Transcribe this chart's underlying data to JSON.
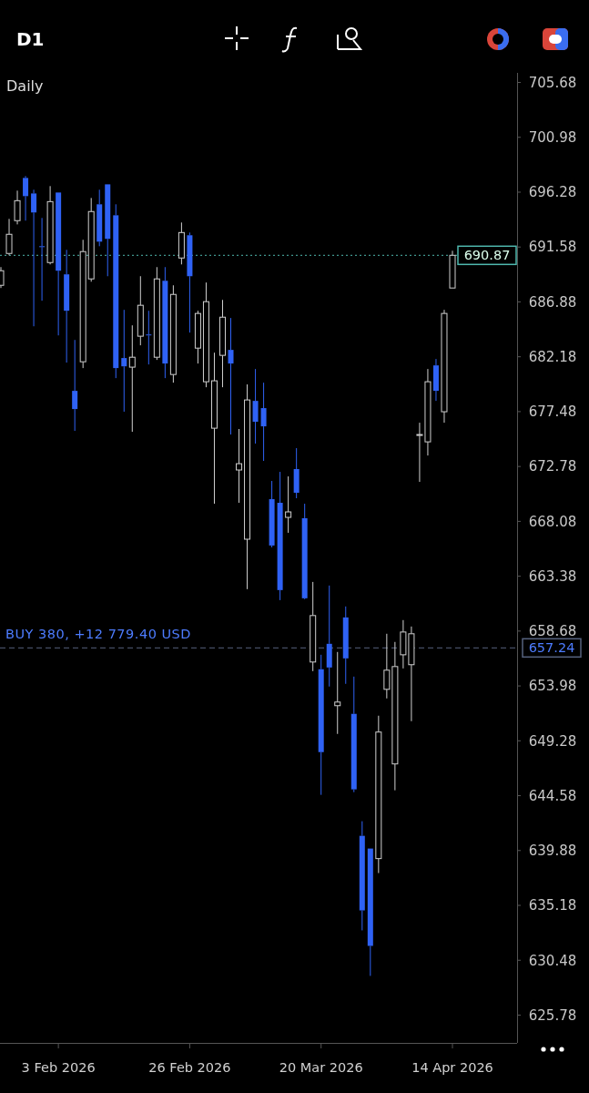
{
  "chart_data": {
    "type": "candlestick",
    "title": "Daily",
    "categories": [
      null,
      null,
      null,
      null,
      null,
      null,
      null,
      "3 Feb 2026",
      null,
      null,
      null,
      null,
      null,
      null,
      null,
      null,
      null,
      null,
      null,
      null,
      null,
      null,
      null,
      "26 Feb 2026",
      null,
      null,
      null,
      null,
      null,
      null,
      null,
      null,
      null,
      null,
      null,
      null,
      null,
      null,
      null,
      "20 Mar 2026",
      null,
      null,
      null,
      null,
      null,
      null,
      null,
      null,
      null,
      null,
      null,
      null,
      null,
      null,
      null,
      "14 Apr 2026"
    ],
    "ohlc": [
      [
        688.3,
        689.86,
        688.07,
        689.55
      ],
      [
        691.03,
        693.99,
        690.87,
        692.67
      ],
      [
        693.84,
        696.41,
        693.52,
        695.55
      ],
      [
        697.5,
        697.66,
        693.84,
        695.94
      ],
      [
        696.17,
        696.49,
        684.79,
        694.54
      ],
      [
        691.65,
        694.07,
        686.98,
        691.58
      ],
      [
        690.25,
        696.8,
        690.09,
        695.47
      ],
      [
        696.25,
        696.25,
        684.01,
        689.55
      ],
      [
        689.24,
        691.34,
        681.68,
        686.12
      ],
      [
        679.26,
        683.62,
        675.83,
        677.7
      ],
      [
        681.75,
        692.2,
        681.21,
        691.19
      ],
      [
        688.85,
        695.78,
        688.61,
        694.62
      ],
      [
        695.24,
        696.49,
        691.65,
        692.04
      ],
      [
        696.95,
        696.95,
        689.08,
        692.28
      ],
      [
        694.3,
        695.24,
        680.35,
        681.21
      ],
      [
        682.07,
        686.2,
        677.47,
        681.36
      ],
      [
        681.29,
        684.87,
        675.75,
        682.14
      ],
      [
        683.94,
        689.08,
        683.16,
        686.59
      ],
      [
        684.09,
        686.12,
        681.52,
        684.01
      ],
      [
        682.14,
        689.86,
        681.91,
        688.85
      ],
      [
        688.69,
        689.86,
        680.35,
        681.6
      ],
      [
        680.66,
        688.3,
        679.96,
        687.52
      ],
      [
        690.64,
        693.68,
        690.09,
        692.82
      ],
      [
        692.59,
        692.82,
        684.25,
        689.08
      ],
      [
        682.92,
        686.12,
        681.6,
        685.89
      ],
      [
        680.04,
        688.54,
        679.57,
        686.9
      ],
      [
        676.06,
        682.53,
        669.59,
        680.12
      ],
      [
        682.3,
        687.05,
        679.57,
        685.57
      ],
      [
        682.77,
        685.5,
        675.52,
        681.6
      ],
      [
        672.48,
        675.99,
        669.67,
        673.02
      ],
      [
        666.55,
        679.81,
        662.27,
        678.48
      ],
      [
        678.4,
        681.13,
        674.74,
        676.61
      ],
      [
        677.78,
        679.96,
        673.26,
        676.22
      ],
      [
        669.98,
        671.54,
        665.85,
        666.01
      ],
      [
        669.67,
        672.32,
        661.33,
        662.19
      ],
      [
        668.42,
        671.93,
        667.1,
        668.89
      ],
      [
        672.56,
        674.35,
        670.06,
        670.53
      ],
      [
        668.35,
        669.59,
        661.41,
        661.49
      ],
      [
        656.03,
        662.89,
        655.25,
        660.01
      ],
      [
        655.41,
        656.65,
        644.65,
        648.31
      ],
      [
        657.59,
        662.58,
        653.93,
        655.56
      ],
      [
        652.29,
        656.89,
        649.87,
        652.6
      ],
      [
        659.85,
        660.79,
        654.16,
        656.34
      ],
      [
        651.59,
        654.78,
        644.88,
        645.12
      ],
      [
        641.14,
        642.39,
        633.04,
        634.75
      ],
      [
        640.05,
        640.05,
        629.14,
        631.71
      ],
      [
        639.19,
        651.43,
        637.95,
        650.03
      ],
      [
        653.69,
        658.45,
        652.91,
        655.33
      ],
      [
        647.3,
        657.75,
        645.04,
        655.64
      ],
      [
        656.65,
        659.62,
        655.48,
        658.6
      ],
      [
        655.8,
        659.07,
        650.96,
        658.45
      ],
      [
        675.44,
        676.53,
        671.46,
        675.52
      ],
      [
        674.89,
        681.13,
        673.72,
        680.04
      ],
      [
        681.44,
        681.99,
        678.4,
        679.26
      ],
      [
        677.47,
        686.2,
        676.53,
        685.89
      ],
      [
        688.07,
        691.26,
        688.07,
        690.87
      ]
    ],
    "colors": [
      "#d0d0d0",
      "#d0d0d0",
      "#d0d0d0",
      "#2f62f5",
      "#2f62f5",
      "#2f62f5",
      "#d0d0d0",
      "#2f62f5",
      "#2f62f5",
      "#2f62f5",
      "#d0d0d0",
      "#d0d0d0",
      "#2f62f5",
      "#2f62f5",
      "#2f62f5",
      "#2f62f5",
      "#d0d0d0",
      "#d0d0d0",
      "#2f62f5",
      "#d0d0d0",
      "#2f62f5",
      "#d0d0d0",
      "#d0d0d0",
      "#2f62f5",
      "#d0d0d0",
      "#d0d0d0",
      "#d0d0d0",
      "#d0d0d0",
      "#2f62f5",
      "#d0d0d0",
      "#d0d0d0",
      "#2f62f5",
      "#2f62f5",
      "#2f62f5",
      "#2f62f5",
      "#d0d0d0",
      "#2f62f5",
      "#2f62f5",
      "#d0d0d0",
      "#2f62f5",
      "#2f62f5",
      "#d0d0d0",
      "#2f62f5",
      "#2f62f5",
      "#2f62f5",
      "#2f62f5",
      "#d0d0d0",
      "#d0d0d0",
      "#d0d0d0",
      "#d0d0d0",
      "#d0d0d0",
      "#d0d0d0",
      "#d0d0d0",
      "#2f62f5",
      "#d0d0d0",
      "#d0d0d0"
    ],
    "ylim": [
      623.4,
      706.5
    ],
    "yticks": [
      625.78,
      630.48,
      635.18,
      639.88,
      644.58,
      649.28,
      653.98,
      658.68,
      663.38,
      668.08,
      672.78,
      677.48,
      682.18,
      686.88,
      691.58,
      696.28,
      700.98,
      705.68
    ],
    "ref_lines": [
      {
        "axis": "y",
        "value": 690.87,
        "label": "690.87",
        "color": "#4fb8ae",
        "line_style": "dotted"
      },
      {
        "axis": "y",
        "value": 657.24,
        "label": "657.24",
        "color": "#56627e",
        "line_style": "dashed"
      }
    ],
    "annotations": [
      "D1",
      {
        "text": "BUY 380, +12 779.40 USD",
        "y": 657.24
      }
    ],
    "grid": false
  }
}
